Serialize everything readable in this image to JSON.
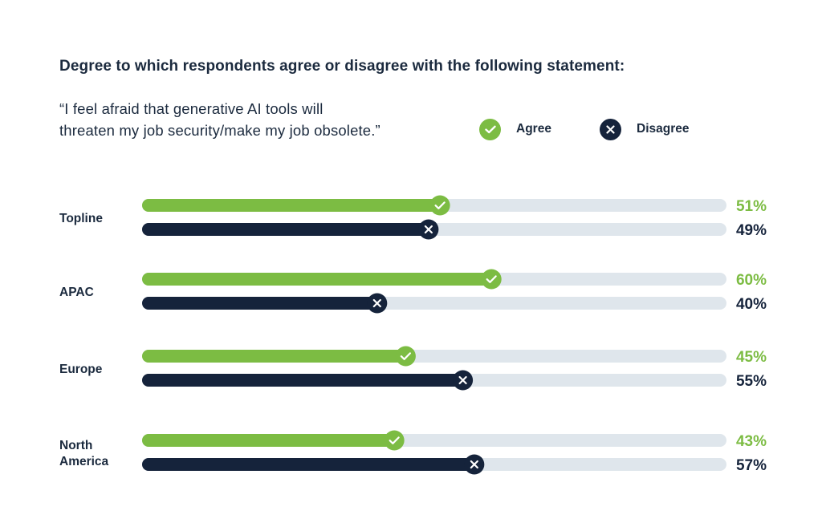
{
  "title": "Degree to which respondents agree or disagree with the following statement:",
  "statement": [
    "“I feel afraid that generative AI tools will",
    "threaten my job security/make my job obsolete.”"
  ],
  "colors": {
    "agree": "#7cbc43",
    "disagree": "#15233b",
    "track": "#dfe6ec",
    "text": "#1b2a3e"
  },
  "legend": [
    {
      "label": "Agree",
      "icon": "check-icon",
      "color": "#7cbc43"
    },
    {
      "label": "Disagree",
      "icon": "x-icon",
      "color": "#15233b"
    }
  ],
  "chart_data": {
    "type": "bar",
    "orientation": "horizontal",
    "categories": [
      "Topline",
      "APAC",
      "Europe",
      "North America"
    ],
    "series": [
      {
        "name": "Agree",
        "values": [
          51,
          60,
          45,
          43
        ],
        "value_labels": [
          "51%",
          "60%",
          "45%",
          "43%"
        ]
      },
      {
        "name": "Disagree",
        "values": [
          49,
          40,
          55,
          57
        ],
        "value_labels": [
          "49%",
          "40%",
          "55%",
          "57%"
        ]
      }
    ],
    "xlim": [
      0,
      100
    ],
    "unit": "%",
    "grid": false,
    "legend_position": "top-right"
  }
}
